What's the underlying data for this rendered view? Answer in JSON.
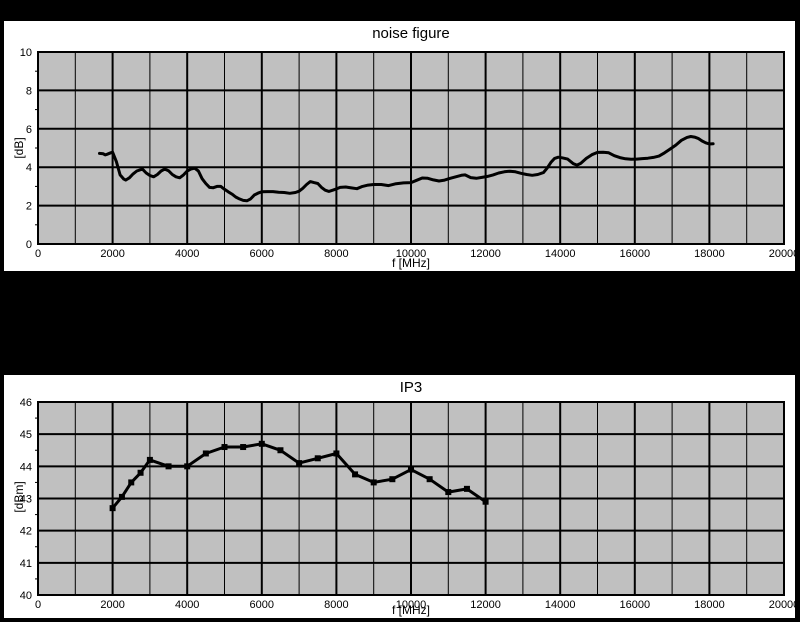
{
  "page": {
    "background_color": "#000000",
    "panel_color": "#ffffff",
    "plot_background_color": "#c0c0c0",
    "grid_color": "#000000",
    "line_color": "#000000",
    "text_color": "#000000"
  },
  "chart_data": [
    {
      "type": "line",
      "title": "noise figure",
      "xlabel": "f [MHz]",
      "ylabel": "[dB]",
      "xlim": [
        0,
        20000
      ],
      "ylim": [
        0,
        10
      ],
      "x_tick_step": 2000,
      "x_grid_minor_step": 1000,
      "y_tick_step": 2,
      "y_tick_minor_step": 1,
      "x_tick_labels": [
        "0",
        "2000",
        "4000",
        "6000",
        "8000",
        "10000",
        "12000",
        "14000",
        "16000",
        "18000",
        "20000"
      ],
      "y_tick_labels": [
        "0",
        "2",
        "4",
        "6",
        "8",
        "10"
      ],
      "grid": true,
      "legend": null,
      "markers": false,
      "series": [
        {
          "name": "noise figure",
          "points": [
            [
              1650,
              4.72
            ],
            [
              1750,
              4.7
            ],
            [
              1800,
              4.64
            ],
            [
              1850,
              4.67
            ],
            [
              1950,
              4.75
            ],
            [
              2000,
              4.78
            ],
            [
              2100,
              4.3
            ],
            [
              2200,
              3.6
            ],
            [
              2300,
              3.38
            ],
            [
              2350,
              3.33
            ],
            [
              2450,
              3.45
            ],
            [
              2550,
              3.65
            ],
            [
              2650,
              3.8
            ],
            [
              2800,
              3.9
            ],
            [
              2900,
              3.7
            ],
            [
              3000,
              3.57
            ],
            [
              3100,
              3.5
            ],
            [
              3200,
              3.62
            ],
            [
              3300,
              3.8
            ],
            [
              3400,
              3.9
            ],
            [
              3500,
              3.82
            ],
            [
              3600,
              3.62
            ],
            [
              3700,
              3.5
            ],
            [
              3800,
              3.45
            ],
            [
              3900,
              3.6
            ],
            [
              4000,
              3.8
            ],
            [
              4100,
              3.9
            ],
            [
              4200,
              3.95
            ],
            [
              4300,
              3.8
            ],
            [
              4400,
              3.4
            ],
            [
              4500,
              3.15
            ],
            [
              4600,
              2.95
            ],
            [
              4700,
              2.93
            ],
            [
              4800,
              3.0
            ],
            [
              4900,
              3.0
            ],
            [
              5000,
              2.85
            ],
            [
              5100,
              2.72
            ],
            [
              5200,
              2.6
            ],
            [
              5300,
              2.45
            ],
            [
              5400,
              2.35
            ],
            [
              5500,
              2.27
            ],
            [
              5600,
              2.25
            ],
            [
              5700,
              2.35
            ],
            [
              5800,
              2.55
            ],
            [
              5900,
              2.65
            ],
            [
              6000,
              2.72
            ],
            [
              6150,
              2.73
            ],
            [
              6300,
              2.73
            ],
            [
              6450,
              2.7
            ],
            [
              6600,
              2.68
            ],
            [
              6750,
              2.64
            ],
            [
              6900,
              2.68
            ],
            [
              7000,
              2.75
            ],
            [
              7100,
              2.9
            ],
            [
              7200,
              3.1
            ],
            [
              7300,
              3.25
            ],
            [
              7400,
              3.2
            ],
            [
              7500,
              3.15
            ],
            [
              7600,
              2.95
            ],
            [
              7700,
              2.8
            ],
            [
              7800,
              2.74
            ],
            [
              7900,
              2.8
            ],
            [
              8000,
              2.87
            ],
            [
              8100,
              2.95
            ],
            [
              8250,
              2.97
            ],
            [
              8400,
              2.92
            ],
            [
              8550,
              2.88
            ],
            [
              8700,
              3.0
            ],
            [
              8850,
              3.07
            ],
            [
              9000,
              3.1
            ],
            [
              9200,
              3.1
            ],
            [
              9400,
              3.04
            ],
            [
              9600,
              3.14
            ],
            [
              9800,
              3.18
            ],
            [
              10000,
              3.2
            ],
            [
              10150,
              3.32
            ],
            [
              10300,
              3.44
            ],
            [
              10450,
              3.42
            ],
            [
              10600,
              3.34
            ],
            [
              10750,
              3.28
            ],
            [
              10900,
              3.33
            ],
            [
              11050,
              3.42
            ],
            [
              11200,
              3.5
            ],
            [
              11350,
              3.58
            ],
            [
              11450,
              3.6
            ],
            [
              11600,
              3.46
            ],
            [
              11750,
              3.42
            ],
            [
              11900,
              3.47
            ],
            [
              12050,
              3.52
            ],
            [
              12200,
              3.6
            ],
            [
              12350,
              3.7
            ],
            [
              12500,
              3.76
            ],
            [
              12650,
              3.79
            ],
            [
              12800,
              3.76
            ],
            [
              12950,
              3.68
            ],
            [
              13100,
              3.62
            ],
            [
              13250,
              3.58
            ],
            [
              13400,
              3.62
            ],
            [
              13550,
              3.72
            ],
            [
              13650,
              3.95
            ],
            [
              13750,
              4.25
            ],
            [
              13850,
              4.46
            ],
            [
              13950,
              4.52
            ],
            [
              14050,
              4.49
            ],
            [
              14200,
              4.42
            ],
            [
              14350,
              4.18
            ],
            [
              14450,
              4.11
            ],
            [
              14550,
              4.2
            ],
            [
              14700,
              4.46
            ],
            [
              14850,
              4.65
            ],
            [
              15000,
              4.77
            ],
            [
              15150,
              4.78
            ],
            [
              15300,
              4.75
            ],
            [
              15450,
              4.6
            ],
            [
              15600,
              4.5
            ],
            [
              15750,
              4.44
            ],
            [
              15900,
              4.41
            ],
            [
              16050,
              4.42
            ],
            [
              16200,
              4.45
            ],
            [
              16350,
              4.47
            ],
            [
              16500,
              4.51
            ],
            [
              16650,
              4.58
            ],
            [
              16800,
              4.75
            ],
            [
              16950,
              4.95
            ],
            [
              17100,
              5.15
            ],
            [
              17250,
              5.4
            ],
            [
              17400,
              5.55
            ],
            [
              17500,
              5.6
            ],
            [
              17600,
              5.57
            ],
            [
              17700,
              5.5
            ],
            [
              17800,
              5.37
            ],
            [
              17900,
              5.27
            ],
            [
              18000,
              5.21
            ],
            [
              18100,
              5.22
            ]
          ]
        }
      ]
    },
    {
      "type": "line",
      "title": "IP3",
      "xlabel": "f [MHz]",
      "ylabel": "[dBm]",
      "xlim": [
        0,
        20000
      ],
      "ylim": [
        40,
        46
      ],
      "x_tick_step": 2000,
      "x_grid_minor_step": 1000,
      "y_tick_step": 1,
      "y_tick_minor_step": 0.5,
      "x_tick_labels": [
        "0",
        "2000",
        "4000",
        "6000",
        "8000",
        "10000",
        "12000",
        "14000",
        "16000",
        "18000",
        "20000"
      ],
      "y_tick_labels": [
        "40",
        "41",
        "42",
        "43",
        "44",
        "45",
        "46"
      ],
      "grid": true,
      "legend": null,
      "markers": true,
      "series": [
        {
          "name": "IP3",
          "points": [
            [
              2000,
              42.7
            ],
            [
              2250,
              43.05
            ],
            [
              2500,
              43.5
            ],
            [
              2750,
              43.8
            ],
            [
              3000,
              44.2
            ],
            [
              3500,
              44.0
            ],
            [
              4000,
              44.0
            ],
            [
              4500,
              44.4
            ],
            [
              5000,
              44.6
            ],
            [
              5500,
              44.6
            ],
            [
              6000,
              44.7
            ],
            [
              6500,
              44.5
            ],
            [
              7000,
              44.1
            ],
            [
              7500,
              44.25
            ],
            [
              8000,
              44.4
            ],
            [
              8500,
              43.75
            ],
            [
              9000,
              43.5
            ],
            [
              9500,
              43.6
            ],
            [
              10000,
              43.9
            ],
            [
              10500,
              43.6
            ],
            [
              11000,
              43.2
            ],
            [
              11500,
              43.3
            ],
            [
              12000,
              42.9
            ]
          ]
        }
      ]
    }
  ]
}
